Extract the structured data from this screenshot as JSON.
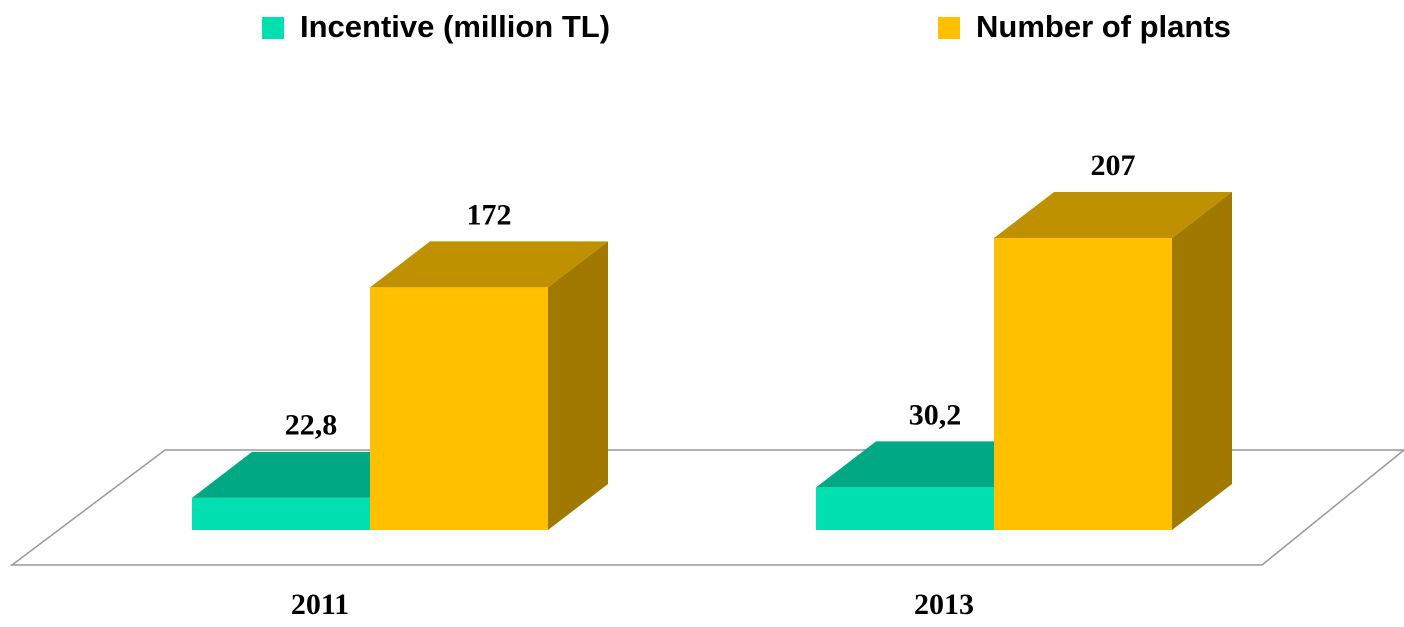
{
  "chart_data": {
    "type": "bar3d",
    "categories": [
      "2011",
      "2013"
    ],
    "series": [
      {
        "name": "Incentive (million TL)",
        "color": "#00e0b0",
        "values": [
          22.8,
          30.2
        ],
        "value_labels": [
          "22,8",
          "30,2"
        ]
      },
      {
        "name": "Number of plants",
        "color": "#ffc000",
        "values": [
          172,
          207
        ]
      }
    ]
  }
}
